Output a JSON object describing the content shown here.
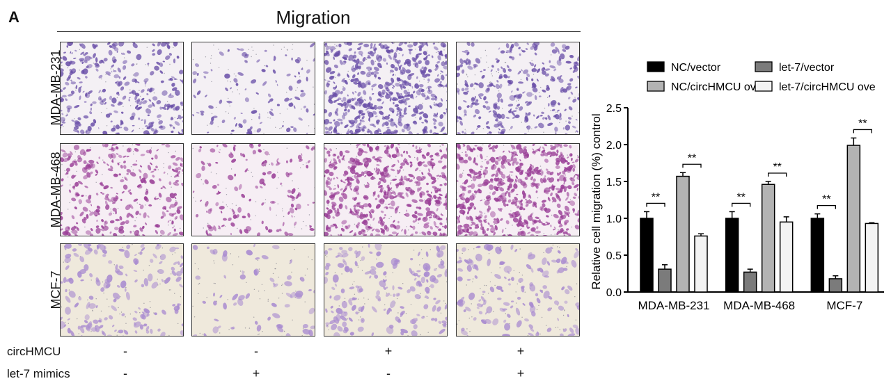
{
  "panel_label": "A",
  "title": "Migration",
  "row_labels": [
    "MDA-MB-231",
    "MDA-MB-468",
    "MCF-7"
  ],
  "conditions": [
    {
      "label": "circHMCU",
      "signs": [
        "-",
        "-",
        "+",
        "+"
      ]
    },
    {
      "label": "let-7 mimics",
      "signs": [
        "-",
        "+",
        "-",
        "+"
      ]
    }
  ],
  "micrographs": {
    "colors": {
      "bg_231": "#f4f0f4",
      "bg_468": "#f6eef4",
      "bg_mcf": "#efe9dc",
      "cell_231": "#6a4fa8",
      "cell_468": "#9a3f97",
      "cell_mcf": "#a98bd0",
      "pore": "#6b6b7a"
    },
    "density": [
      [
        0.55,
        0.2,
        1.0,
        0.55
      ],
      [
        0.55,
        0.25,
        0.95,
        1.0
      ],
      [
        0.3,
        0.12,
        0.32,
        0.28
      ]
    ]
  },
  "chart_data": {
    "type": "bar",
    "categories": [
      "MDA-MB-231",
      "MDA-MB-468",
      "MCF-7"
    ],
    "ylabel": "Relative cell migration (%) control",
    "ylim": [
      0,
      2.5
    ],
    "yticks": [
      "0.0",
      "0.5",
      "1.0",
      "1.5",
      "2.0",
      "2.5"
    ],
    "legend_position": "top",
    "series": [
      {
        "name": "NC/vector",
        "values": [
          1.0,
          1.0,
          1.0
        ],
        "errors": [
          0.09,
          0.09,
          0.06
        ],
        "color": "#000000"
      },
      {
        "name": "let-7/vector",
        "values": [
          0.31,
          0.27,
          0.18
        ],
        "errors": [
          0.06,
          0.04,
          0.04
        ],
        "color": "#7b7b7b"
      },
      {
        "name": "NC/circHMCU ove",
        "values": [
          1.57,
          1.46,
          1.99
        ],
        "errors": [
          0.05,
          0.04,
          0.1
        ],
        "color": "#b3b3b3"
      },
      {
        "name": "let-7/circHMCU ove",
        "values": [
          0.76,
          0.95,
          0.93
        ],
        "errors": [
          0.03,
          0.07,
          0.01
        ],
        "color": "#f3f3f3"
      }
    ],
    "significance": [
      {
        "category": 0,
        "from": 0,
        "to": 1,
        "label": "**"
      },
      {
        "category": 0,
        "from": 2,
        "to": 3,
        "label": "**"
      },
      {
        "category": 1,
        "from": 0,
        "to": 1,
        "label": "**"
      },
      {
        "category": 1,
        "from": 2,
        "to": 3,
        "label": "**"
      },
      {
        "category": 2,
        "from": 0,
        "to": 1,
        "label": "**"
      },
      {
        "category": 2,
        "from": 2,
        "to": 3,
        "label": "**"
      }
    ]
  }
}
